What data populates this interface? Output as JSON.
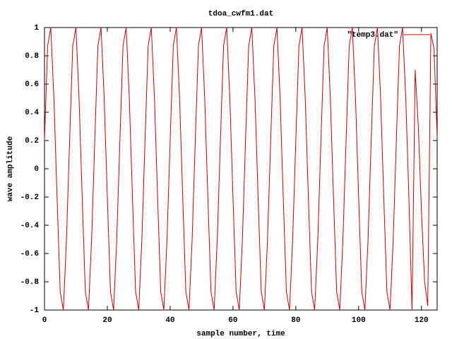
{
  "chart_data": {
    "type": "line",
    "title": "tdoa_cwfm1.dat",
    "x_label": "sample number, time",
    "y_label": "wave amplitude",
    "x": [
      0,
      1,
      2,
      3,
      4,
      5,
      6,
      7,
      8,
      9,
      10,
      11,
      12,
      13,
      14,
      15,
      16,
      17,
      18,
      19,
      20,
      21,
      22,
      23,
      24,
      25,
      26,
      27,
      28,
      29,
      30,
      31,
      32,
      33,
      34,
      35,
      36,
      37,
      38,
      39,
      40,
      41,
      42,
      43,
      44,
      45,
      46,
      47,
      48,
      49,
      50,
      51,
      52,
      53,
      54,
      55,
      56,
      57,
      58,
      59,
      60,
      61,
      62,
      63,
      64,
      65,
      66,
      67,
      68,
      69,
      70,
      71,
      72,
      73,
      74,
      75,
      76,
      77,
      78,
      79,
      80,
      81,
      82,
      83,
      84,
      85,
      86,
      87,
      88,
      89,
      90,
      91,
      92,
      93,
      94,
      95,
      96,
      97,
      98,
      99,
      100,
      101,
      102,
      103,
      104,
      105,
      106,
      107,
      108,
      109,
      110,
      111,
      112,
      113,
      114,
      115,
      116,
      117,
      118,
      119,
      120,
      121,
      122,
      123,
      124,
      125
    ],
    "series": [
      {
        "name": "\"temp3.dat\"",
        "color": "#cc0000",
        "values": [
          0.2,
          0.87,
          1,
          0.5,
          -0.2,
          -0.87,
          -1,
          -0.5,
          0.2,
          0.87,
          1,
          0.5,
          -0.2,
          -0.87,
          -1,
          -0.5,
          0.2,
          0.87,
          1,
          0.5,
          -0.2,
          -0.87,
          -1,
          -0.5,
          0.2,
          0.87,
          1,
          0.5,
          -0.2,
          -0.87,
          -1,
          -0.5,
          0.2,
          0.87,
          1,
          0.5,
          -0.2,
          -0.87,
          -1,
          -0.5,
          0.2,
          0.87,
          1,
          0.5,
          -0.2,
          -0.87,
          -1,
          -0.5,
          0.2,
          0.87,
          1,
          0.5,
          -0.2,
          -0.87,
          -1,
          -0.5,
          0.2,
          0.87,
          1,
          0.5,
          -0.2,
          -0.87,
          -1,
          -0.5,
          0.2,
          0.87,
          1,
          0.5,
          -0.2,
          -0.87,
          -1,
          -0.5,
          0.2,
          0.87,
          1,
          0.5,
          -0.2,
          -0.87,
          -1,
          -0.5,
          0.2,
          0.87,
          1,
          0.5,
          -0.2,
          -0.87,
          -1,
          -0.5,
          0.2,
          0.87,
          1,
          0.5,
          -0.2,
          -0.87,
          -1,
          -0.5,
          0.2,
          0.87,
          1,
          0.5,
          -0.2,
          -0.87,
          -1,
          -0.5,
          0.2,
          0.87,
          1,
          0.5,
          -0.2,
          -0.87,
          -1,
          -0.5,
          0.2,
          0.87,
          1,
          0.5,
          -0.2,
          -1,
          0.7,
          0.3,
          -0.3,
          -0.8,
          -0.97,
          0.96,
          0.85,
          0.22
        ]
      }
    ],
    "xlim": [
      0,
      125
    ],
    "xticks": [
      0,
      20,
      40,
      60,
      80,
      100,
      120
    ],
    "ylim": [
      -1,
      1
    ],
    "yticks": [
      -1,
      -0.8,
      -0.6,
      -0.4,
      -0.2,
      0,
      0.2,
      0.4,
      0.6,
      0.8,
      1
    ],
    "grid": false,
    "legend": "top-right"
  }
}
